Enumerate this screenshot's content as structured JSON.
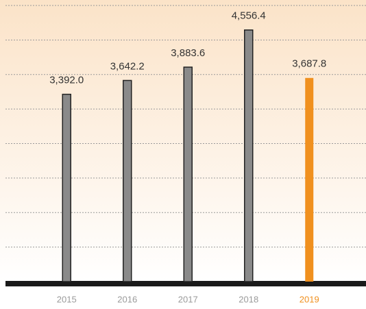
{
  "chart_data": {
    "type": "bar",
    "categories": [
      "2015",
      "2016",
      "2017",
      "2018",
      "2019"
    ],
    "values": [
      3392.0,
      3642.2,
      3883.6,
      4556.4,
      3687.8
    ],
    "value_labels": [
      "3,392.0",
      "3,642.2",
      "3,883.6",
      "4,556.4",
      "3,687.8"
    ],
    "colors": [
      "#8a8a8a",
      "#8a8a8a",
      "#8a8a8a",
      "#8a8a8a",
      "#f0901e"
    ],
    "label_colors": [
      "#9a9a9a",
      "#9a9a9a",
      "#9a9a9a",
      "#9a9a9a",
      "#f0901e"
    ],
    "ylim": [
      0,
      5000
    ],
    "yticks": [
      0,
      625,
      1250,
      1875,
      2500,
      3125,
      3750,
      4375,
      5000
    ],
    "grid": true
  }
}
